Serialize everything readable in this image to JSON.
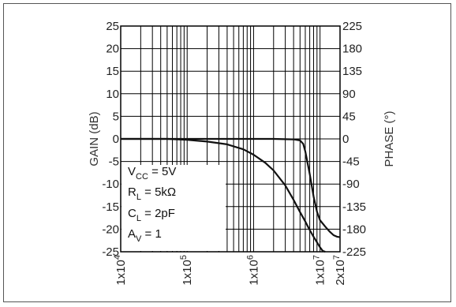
{
  "chart_data": {
    "type": "line",
    "x_scale": "log",
    "xlim": [
      10000,
      20000000
    ],
    "x_ticks": [
      {
        "value": 10000,
        "base": "1x10",
        "exp": "4"
      },
      {
        "value": 100000,
        "base": "1x10",
        "exp": "5"
      },
      {
        "value": 1000000,
        "base": "1x10",
        "exp": "6"
      },
      {
        "value": 10000000,
        "base": "1x10",
        "exp": "7"
      },
      {
        "value": 20000000,
        "base": "2x10",
        "exp": "7"
      }
    ],
    "left_axis": {
      "label": "GAIN (dB)",
      "ylim": [
        -25,
        25
      ],
      "ticks": [
        "25",
        "20",
        "15",
        "10",
        "5",
        "0",
        "-5",
        "-10",
        "-15",
        "-20",
        "-25"
      ],
      "tick_values": [
        25,
        20,
        15,
        10,
        5,
        0,
        -5,
        -10,
        -15,
        -20,
        -25
      ]
    },
    "right_axis": {
      "label": "PHASE (°)",
      "ylim": [
        -225,
        225
      ],
      "ticks": [
        "225",
        "180",
        "135",
        "90",
        "45",
        "0",
        "-45",
        "-90",
        "-135",
        "-180",
        "-225"
      ],
      "tick_values": [
        225,
        180,
        135,
        90,
        45,
        0,
        -45,
        -90,
        -135,
        -180,
        -225
      ]
    },
    "grid": true,
    "series": [
      {
        "axis": "left",
        "x": [
          10000,
          50000,
          100000,
          200000,
          400000,
          700000,
          1000000,
          1500000,
          2000000,
          3000000,
          4000000,
          5000000,
          6000000,
          7000000,
          8000000,
          9000000,
          10000000,
          11000000,
          12000000
        ],
        "y": [
          0,
          0,
          -0.2,
          -0.6,
          -1.2,
          -2.3,
          -3.5,
          -5.3,
          -7,
          -10.3,
          -13.5,
          -16.2,
          -18.3,
          -20.2,
          -21.7,
          -22.9,
          -24,
          -24.8,
          -25
        ]
      },
      {
        "axis": "right",
        "x": [
          10000,
          100000,
          1000000,
          2000000,
          4000000,
          5000000,
          5600000,
          6000000,
          7000000,
          8000000,
          9000000,
          10000000,
          12000000,
          14000000,
          16000000,
          18000000,
          20000000
        ],
        "y": [
          0,
          0,
          0,
          0,
          -1,
          -3,
          -10,
          -25,
          -70,
          -115,
          -145,
          -162,
          -175,
          -185,
          -192,
          -195,
          -196
        ]
      }
    ],
    "annotations": [
      {
        "parts": [
          {
            "t": "V"
          },
          {
            "t": "CC",
            "sub": true
          },
          {
            "t": " = 5V"
          }
        ]
      },
      {
        "parts": [
          {
            "t": "R"
          },
          {
            "t": "L",
            "sub": true
          },
          {
            "t": " = 5kΩ"
          }
        ]
      },
      {
        "parts": [
          {
            "t": "C"
          },
          {
            "t": "L",
            "sub": true
          },
          {
            "t": " = 2pF"
          }
        ]
      },
      {
        "parts": [
          {
            "t": "A"
          },
          {
            "t": "V",
            "sub": true
          },
          {
            "t": " = 1"
          }
        ]
      }
    ],
    "colors": {
      "line": "#111111",
      "grid": "#000000",
      "axis_text": "#222222"
    }
  }
}
